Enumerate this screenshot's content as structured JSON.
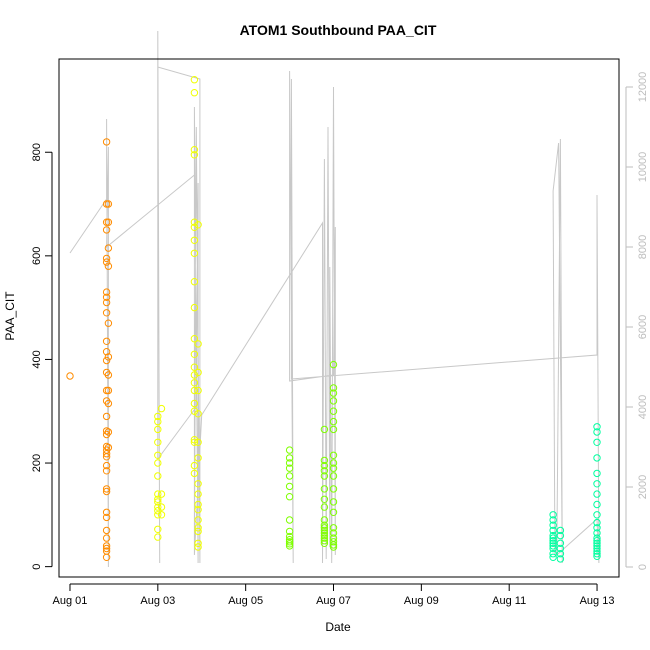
{
  "chart_data": {
    "type": "scatter",
    "title": "ATOM1 Southbound PAA_CIT",
    "xlabel": "Date",
    "ylabel": "PAA_CIT",
    "xlim": [
      "2016-07-31T18:00",
      "2016-08-13T12:00"
    ],
    "ylim": [
      -20,
      980
    ],
    "xticks": [
      {
        "date": "2016-08-01",
        "label": "Aug 01"
      },
      {
        "date": "2016-08-03",
        "label": "Aug 03"
      },
      {
        "date": "2016-08-05",
        "label": "Aug 05"
      },
      {
        "date": "2016-08-07",
        "label": "Aug 07"
      },
      {
        "date": "2016-08-09",
        "label": "Aug 09"
      },
      {
        "date": "2016-08-11",
        "label": "Aug 11"
      },
      {
        "date": "2016-08-13",
        "label": "Aug 13"
      }
    ],
    "yticks": [
      0,
      200,
      400,
      600,
      800
    ],
    "y2lim": [
      -250,
      12700
    ],
    "y2ticks": [
      0,
      2000,
      4000,
      6000,
      8000,
      10000,
      12000
    ],
    "grid": false,
    "legend": "none",
    "colors": {
      "line": "#c8c8c8",
      "frame": "#000000",
      "right_axis": "#bdbdbd"
    },
    "series": [
      {
        "color": "#ff8c00",
        "points": [
          [
            "2016-08-01T00:00",
            368
          ],
          [
            "2016-08-01T20:00",
            820
          ],
          [
            "2016-08-01T20:00",
            700
          ],
          [
            "2016-08-01T20:00",
            665
          ],
          [
            "2016-08-01T20:00",
            650
          ],
          [
            "2016-08-01T20:00",
            595
          ],
          [
            "2016-08-01T20:00",
            588
          ],
          [
            "2016-08-01T20:00",
            530
          ],
          [
            "2016-08-01T20:00",
            520
          ],
          [
            "2016-08-01T20:00",
            510
          ],
          [
            "2016-08-01T20:00",
            490
          ],
          [
            "2016-08-01T20:00",
            435
          ],
          [
            "2016-08-01T20:00",
            415
          ],
          [
            "2016-08-01T20:00",
            398
          ],
          [
            "2016-08-01T20:00",
            375
          ],
          [
            "2016-08-01T20:00",
            340
          ],
          [
            "2016-08-01T20:00",
            320
          ],
          [
            "2016-08-01T20:00",
            290
          ],
          [
            "2016-08-01T20:00",
            262
          ],
          [
            "2016-08-01T20:00",
            255
          ],
          [
            "2016-08-01T20:00",
            232
          ],
          [
            "2016-08-01T20:00",
            225
          ],
          [
            "2016-08-01T20:00",
            218
          ],
          [
            "2016-08-01T20:00",
            212
          ],
          [
            "2016-08-01T20:00",
            195
          ],
          [
            "2016-08-01T20:00",
            185
          ],
          [
            "2016-08-01T20:00",
            150
          ],
          [
            "2016-08-01T20:00",
            145
          ],
          [
            "2016-08-01T20:00",
            105
          ],
          [
            "2016-08-01T20:00",
            95
          ],
          [
            "2016-08-01T20:00",
            70
          ],
          [
            "2016-08-01T20:00",
            55
          ],
          [
            "2016-08-01T20:00",
            40
          ],
          [
            "2016-08-01T20:00",
            35
          ],
          [
            "2016-08-01T20:00",
            30
          ],
          [
            "2016-08-01T20:00",
            18
          ],
          [
            "2016-08-01T21:00",
            700
          ],
          [
            "2016-08-01T21:00",
            665
          ],
          [
            "2016-08-01T21:00",
            615
          ],
          [
            "2016-08-01T21:00",
            580
          ],
          [
            "2016-08-01T21:00",
            470
          ],
          [
            "2016-08-01T21:00",
            405
          ],
          [
            "2016-08-01T21:00",
            370
          ],
          [
            "2016-08-01T21:00",
            340
          ],
          [
            "2016-08-01T21:00",
            315
          ],
          [
            "2016-08-01T21:00",
            260
          ],
          [
            "2016-08-01T21:00",
            230
          ]
        ]
      },
      {
        "color": "#f0ff00",
        "points": [
          [
            "2016-08-03T00:00",
            290
          ],
          [
            "2016-08-03T00:00",
            280
          ],
          [
            "2016-08-03T00:00",
            265
          ],
          [
            "2016-08-03T00:00",
            240
          ],
          [
            "2016-08-03T00:00",
            215
          ],
          [
            "2016-08-03T00:00",
            200
          ],
          [
            "2016-08-03T00:00",
            175
          ],
          [
            "2016-08-03T00:00",
            140
          ],
          [
            "2016-08-03T00:00",
            130
          ],
          [
            "2016-08-03T00:00",
            125
          ],
          [
            "2016-08-03T00:00",
            115
          ],
          [
            "2016-08-03T00:00",
            108
          ],
          [
            "2016-08-03T00:00",
            100
          ],
          [
            "2016-08-03T00:00",
            72
          ],
          [
            "2016-08-03T00:00",
            57
          ],
          [
            "2016-08-03T02:00",
            305
          ],
          [
            "2016-08-03T02:00",
            140
          ],
          [
            "2016-08-03T02:00",
            115
          ],
          [
            "2016-08-03T02:00",
            100
          ],
          [
            "2016-08-03T20:00",
            940
          ],
          [
            "2016-08-03T20:00",
            915
          ],
          [
            "2016-08-03T20:00",
            805
          ],
          [
            "2016-08-03T20:00",
            795
          ],
          [
            "2016-08-03T20:00",
            665
          ],
          [
            "2016-08-03T20:00",
            655
          ],
          [
            "2016-08-03T20:00",
            630
          ],
          [
            "2016-08-03T20:00",
            605
          ],
          [
            "2016-08-03T20:00",
            550
          ],
          [
            "2016-08-03T20:00",
            500
          ],
          [
            "2016-08-03T20:00",
            440
          ],
          [
            "2016-08-03T20:00",
            410
          ],
          [
            "2016-08-03T20:00",
            385
          ],
          [
            "2016-08-03T20:00",
            370
          ],
          [
            "2016-08-03T20:00",
            355
          ],
          [
            "2016-08-03T20:00",
            340
          ],
          [
            "2016-08-03T20:00",
            315
          ],
          [
            "2016-08-03T20:00",
            300
          ],
          [
            "2016-08-03T20:00",
            245
          ],
          [
            "2016-08-03T20:00",
            240
          ],
          [
            "2016-08-03T20:00",
            195
          ],
          [
            "2016-08-03T20:00",
            180
          ],
          [
            "2016-08-03T22:00",
            660
          ],
          [
            "2016-08-03T22:00",
            430
          ],
          [
            "2016-08-03T22:00",
            375
          ],
          [
            "2016-08-03T22:00",
            340
          ],
          [
            "2016-08-03T22:00",
            295
          ],
          [
            "2016-08-03T22:00",
            240
          ],
          [
            "2016-08-03T22:00",
            210
          ],
          [
            "2016-08-03T22:00",
            160
          ],
          [
            "2016-08-03T22:00",
            140
          ],
          [
            "2016-08-03T22:00",
            120
          ],
          [
            "2016-08-03T22:00",
            110
          ],
          [
            "2016-08-03T22:00",
            90
          ],
          [
            "2016-08-03T22:00",
            75
          ],
          [
            "2016-08-03T22:00",
            68
          ],
          [
            "2016-08-03T22:00",
            45
          ],
          [
            "2016-08-03T22:00",
            38
          ]
        ]
      },
      {
        "color": "#7fff00",
        "points": [
          [
            "2016-08-06T00:00",
            225
          ],
          [
            "2016-08-06T00:00",
            210
          ],
          [
            "2016-08-06T00:00",
            200
          ],
          [
            "2016-08-06T00:00",
            190
          ],
          [
            "2016-08-06T00:00",
            175
          ],
          [
            "2016-08-06T00:00",
            155
          ],
          [
            "2016-08-06T00:00",
            135
          ],
          [
            "2016-08-06T00:00",
            90
          ],
          [
            "2016-08-06T00:00",
            68
          ],
          [
            "2016-08-06T00:00",
            58
          ],
          [
            "2016-08-06T00:00",
            52
          ],
          [
            "2016-08-06T00:00",
            48
          ],
          [
            "2016-08-06T00:00",
            44
          ],
          [
            "2016-08-06T00:00",
            40
          ],
          [
            "2016-08-06T19:00",
            265
          ],
          [
            "2016-08-06T19:00",
            205
          ],
          [
            "2016-08-06T19:00",
            195
          ],
          [
            "2016-08-06T19:00",
            185
          ],
          [
            "2016-08-06T19:00",
            175
          ],
          [
            "2016-08-06T19:00",
            150
          ],
          [
            "2016-08-06T19:00",
            130
          ],
          [
            "2016-08-06T19:00",
            115
          ],
          [
            "2016-08-06T19:00",
            90
          ],
          [
            "2016-08-06T19:00",
            80
          ],
          [
            "2016-08-06T19:00",
            75
          ],
          [
            "2016-08-06T19:00",
            70
          ],
          [
            "2016-08-06T19:00",
            65
          ],
          [
            "2016-08-06T19:00",
            60
          ],
          [
            "2016-08-06T19:00",
            55
          ],
          [
            "2016-08-06T19:00",
            50
          ],
          [
            "2016-08-06T19:00",
            45
          ],
          [
            "2016-08-07T00:00",
            390
          ],
          [
            "2016-08-07T00:00",
            345
          ],
          [
            "2016-08-07T00:00",
            335
          ],
          [
            "2016-08-07T00:00",
            320
          ],
          [
            "2016-08-07T00:00",
            300
          ],
          [
            "2016-08-07T00:00",
            280
          ],
          [
            "2016-08-07T00:00",
            265
          ],
          [
            "2016-08-07T00:00",
            215
          ],
          [
            "2016-08-07T00:00",
            200
          ],
          [
            "2016-08-07T00:00",
            190
          ],
          [
            "2016-08-07T00:00",
            175
          ],
          [
            "2016-08-07T00:00",
            150
          ],
          [
            "2016-08-07T00:00",
            125
          ],
          [
            "2016-08-07T00:00",
            105
          ],
          [
            "2016-08-07T00:00",
            75
          ],
          [
            "2016-08-07T00:00",
            65
          ],
          [
            "2016-08-07T00:00",
            55
          ],
          [
            "2016-08-07T00:00",
            48
          ],
          [
            "2016-08-07T00:00",
            42
          ],
          [
            "2016-08-07T00:00",
            38
          ]
        ]
      },
      {
        "color": "#00ffa0",
        "points": [
          [
            "2016-08-12T00:00",
            100
          ],
          [
            "2016-08-12T00:00",
            90
          ],
          [
            "2016-08-12T00:00",
            80
          ],
          [
            "2016-08-12T00:00",
            70
          ],
          [
            "2016-08-12T00:00",
            60
          ],
          [
            "2016-08-12T00:00",
            55
          ],
          [
            "2016-08-12T00:00",
            50
          ],
          [
            "2016-08-12T00:00",
            45
          ],
          [
            "2016-08-12T00:00",
            40
          ],
          [
            "2016-08-12T00:00",
            35
          ],
          [
            "2016-08-12T00:00",
            25
          ],
          [
            "2016-08-12T00:00",
            18
          ],
          [
            "2016-08-12T04:00",
            70
          ],
          [
            "2016-08-12T04:00",
            60
          ],
          [
            "2016-08-12T04:00",
            45
          ],
          [
            "2016-08-12T04:00",
            35
          ],
          [
            "2016-08-12T04:00",
            25
          ],
          [
            "2016-08-12T04:00",
            15
          ],
          [
            "2016-08-13T00:00",
            270
          ],
          [
            "2016-08-13T00:00",
            260
          ],
          [
            "2016-08-13T00:00",
            240
          ],
          [
            "2016-08-13T00:00",
            210
          ],
          [
            "2016-08-13T00:00",
            180
          ],
          [
            "2016-08-13T00:00",
            160
          ],
          [
            "2016-08-13T00:00",
            140
          ],
          [
            "2016-08-13T00:00",
            120
          ],
          [
            "2016-08-13T00:00",
            100
          ],
          [
            "2016-08-13T00:00",
            85
          ],
          [
            "2016-08-13T00:00",
            75
          ],
          [
            "2016-08-13T00:00",
            65
          ],
          [
            "2016-08-13T00:00",
            55
          ],
          [
            "2016-08-13T00:00",
            50
          ],
          [
            "2016-08-13T00:00",
            45
          ],
          [
            "2016-08-13T00:00",
            40
          ],
          [
            "2016-08-13T00:00",
            35
          ],
          [
            "2016-08-13T00:00",
            30
          ],
          [
            "2016-08-13T00:00",
            25
          ],
          [
            "2016-08-13T00:00",
            20
          ]
        ]
      }
    ],
    "y2_series": {
      "color": "#c8c8c8",
      "points": [
        [
          "2016-08-01T00:00",
          7850
        ],
        [
          "2016-08-01T20:00",
          9200
        ],
        [
          "2016-08-01T20:00",
          11200
        ],
        [
          "2016-08-01T21:00",
          0
        ],
        [
          "2016-08-01T21:00",
          10500
        ],
        [
          "2016-08-01T20:00",
          8000
        ],
        [
          "2016-08-03T20:00",
          9800
        ],
        [
          "2016-08-03T20:00",
          500
        ],
        [
          "2016-08-03T20:00",
          11500
        ],
        [
          "2016-08-03T22:00",
          100
        ],
        [
          "2016-08-03T22:00",
          9600
        ],
        [
          "2016-08-03T21:00",
          4000
        ],
        [
          "2016-08-03T00:00",
          2700
        ],
        [
          "2016-08-03T00:00",
          13400
        ],
        [
          "2016-08-03T01:00",
          100
        ],
        [
          "2016-08-03T00:00",
          12500
        ],
        [
          "2016-08-03T23:00",
          12200
        ],
        [
          "2016-08-03T23:00",
          100
        ],
        [
          "2016-08-03T21:00",
          11000
        ],
        [
          "2016-08-03T20:00",
          300
        ],
        [
          "2016-08-04T00:00",
          3800
        ],
        [
          "2016-08-06T18:00",
          8600
        ],
        [
          "2016-08-06T18:00",
          100
        ],
        [
          "2016-08-06T19:00",
          10200
        ],
        [
          "2016-08-06T20:00",
          200
        ],
        [
          "2016-08-06T21:00",
          11000
        ],
        [
          "2016-08-06T22:00",
          500
        ],
        [
          "2016-08-06T22:00",
          7500
        ],
        [
          "2016-08-06T23:00",
          100
        ],
        [
          "2016-08-07T00:00",
          12000
        ],
        [
          "2016-08-07T01:00",
          300
        ],
        [
          "2016-08-07T01:00",
          8500
        ],
        [
          "2016-08-07T00:00",
          4800
        ],
        [
          "2016-08-06T00:00",
          4650
        ],
        [
          "2016-08-06T00:00",
          12400
        ],
        [
          "2016-08-06T02:00",
          100
        ],
        [
          "2016-08-06T01:00",
          12200
        ],
        [
          "2016-08-06T01:00",
          4700
        ],
        [
          "2016-08-13T00:00",
          5300
        ],
        [
          "2016-08-13T00:00",
          9300
        ],
        [
          "2016-08-13T01:00",
          100
        ],
        [
          "2016-08-13T00:00",
          1200
        ],
        [
          "2016-08-12T02:00",
          300
        ],
        [
          "2016-08-12T04:00",
          10700
        ],
        [
          "2016-08-12T05:00",
          100
        ],
        [
          "2016-08-12T03:00",
          10600
        ],
        [
          "2016-08-12T00:00",
          9400
        ],
        [
          "2016-08-12T01:00",
          300
        ]
      ]
    }
  }
}
